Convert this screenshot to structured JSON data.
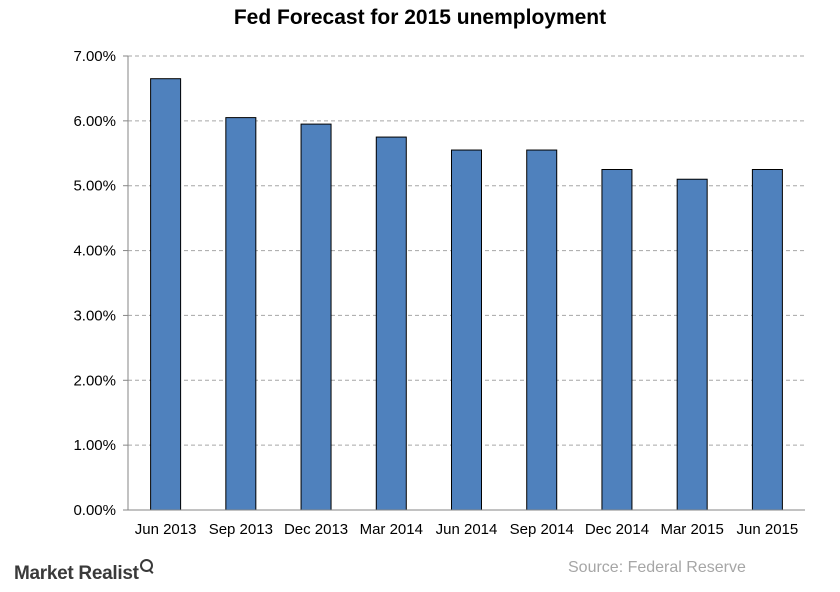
{
  "chart_data": {
    "type": "bar",
    "title": "Fed Forecast for 2015 unemployment",
    "xlabel": "",
    "ylabel": "",
    "categories": [
      "Jun 2013",
      "Sep 2013",
      "Dec 2013",
      "Mar 2014",
      "Jun 2014",
      "Sep 2014",
      "Dec 2014",
      "Mar 2015",
      "Jun 2015"
    ],
    "values": [
      6.65,
      6.05,
      5.95,
      5.75,
      5.55,
      5.55,
      5.25,
      5.1,
      5.25
    ],
    "ylim": [
      0,
      7
    ],
    "yticks": [
      0,
      1,
      2,
      3,
      4,
      5,
      6,
      7
    ],
    "ytick_labels": [
      "0.00%",
      "1.00%",
      "2.00%",
      "3.00%",
      "4.00%",
      "5.00%",
      "6.00%",
      "7.00%"
    ],
    "grid": "horizontal-dashed",
    "legend": "none",
    "bar_color": "#4f81bd",
    "bar_edge_color": "#000000"
  },
  "footer": {
    "logo_text": "Market Realist",
    "source": "Source: Federal Reserve"
  }
}
